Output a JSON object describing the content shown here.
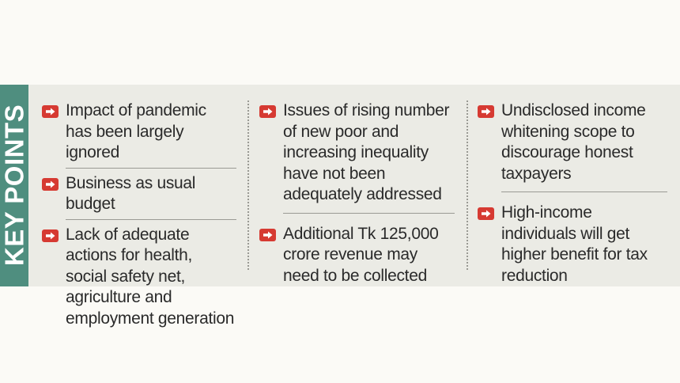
{
  "sidebar": {
    "label": "KEY POINTS"
  },
  "columns": [
    {
      "items": [
        "Impact of pandemic has been largely ignored",
        "Business as usual budget",
        "Lack of adequate actions for health, social safety net, agriculture and employment generation"
      ]
    },
    {
      "items": [
        "Issues of rising number of new poor and increasing inequality have not been adequately addressed",
        "Additional Tk 125,000 crore revenue may need to be collected"
      ]
    },
    {
      "items": [
        "Undisclosed income whitening scope to discourage honest taxpayers",
        "High-income individuals will get higher benefit for tax reduction"
      ]
    }
  ],
  "colors": {
    "band": "#4f8e7f",
    "bullet": "#d63a32",
    "panel": "#ebebe5",
    "text": "#2a2a2a"
  },
  "icons": {
    "bullet": "right-arrow-icon"
  }
}
